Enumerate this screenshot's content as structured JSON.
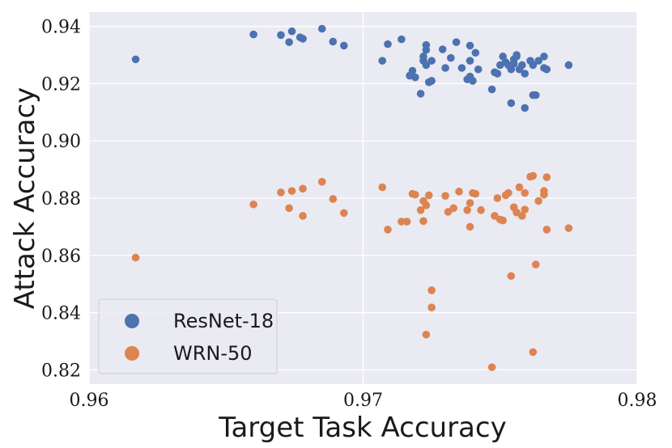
{
  "chart_data": {
    "type": "scatter",
    "title": "",
    "xlabel": "Target Task Accuracy",
    "ylabel": "Attack Accuracy",
    "xlim": [
      0.96,
      0.98
    ],
    "ylim": [
      0.815,
      0.945
    ],
    "xticks": [
      "0.96",
      "0.97",
      "0.98"
    ],
    "xtick_values": [
      0.96,
      0.97,
      0.98
    ],
    "yticks": [
      "0.82",
      "0.84",
      "0.86",
      "0.88",
      "0.90",
      "0.92",
      "0.94"
    ],
    "ytick_values": [
      0.82,
      0.84,
      0.86,
      0.88,
      0.9,
      0.92,
      0.94
    ],
    "grid": true,
    "legend_position": "bottom-left",
    "series": [
      {
        "name": "ResNet-18",
        "color": "#4c72b0",
        "points": [
          [
            0.9617,
            0.9285
          ],
          [
            0.966,
            0.9372
          ],
          [
            0.967,
            0.937
          ],
          [
            0.9673,
            0.9345
          ],
          [
            0.9674,
            0.9383
          ],
          [
            0.9677,
            0.9362
          ],
          [
            0.9678,
            0.9357
          ],
          [
            0.9685,
            0.9392
          ],
          [
            0.9689,
            0.9347
          ],
          [
            0.9693,
            0.9333
          ],
          [
            0.9707,
            0.928
          ],
          [
            0.9709,
            0.9338
          ],
          [
            0.9714,
            0.9355
          ],
          [
            0.9717,
            0.9228
          ],
          [
            0.9718,
            0.9245
          ],
          [
            0.9719,
            0.9222
          ],
          [
            0.9721,
            0.9165
          ],
          [
            0.9722,
            0.928
          ],
          [
            0.9722,
            0.9295
          ],
          [
            0.9723,
            0.9318
          ],
          [
            0.9723,
            0.9335
          ],
          [
            0.9723,
            0.9265
          ],
          [
            0.9724,
            0.9205
          ],
          [
            0.9725,
            0.921
          ],
          [
            0.9725,
            0.928
          ],
          [
            0.9729,
            0.932
          ],
          [
            0.973,
            0.9255
          ],
          [
            0.9732,
            0.929
          ],
          [
            0.9734,
            0.9345
          ],
          [
            0.9736,
            0.9255
          ],
          [
            0.9738,
            0.9215
          ],
          [
            0.9739,
            0.928
          ],
          [
            0.9739,
            0.9333
          ],
          [
            0.9739,
            0.9225
          ],
          [
            0.974,
            0.921
          ],
          [
            0.9741,
            0.9308
          ],
          [
            0.9742,
            0.925
          ],
          [
            0.9747,
            0.918
          ],
          [
            0.9748,
            0.924
          ],
          [
            0.9749,
            0.9235
          ],
          [
            0.975,
            0.9265
          ],
          [
            0.9751,
            0.9295
          ],
          [
            0.9752,
            0.9275
          ],
          [
            0.9753,
            0.9265
          ],
          [
            0.9754,
            0.9132
          ],
          [
            0.9754,
            0.925
          ],
          [
            0.9755,
            0.9285
          ],
          [
            0.9755,
            0.927
          ],
          [
            0.9756,
            0.9295
          ],
          [
            0.9756,
            0.93
          ],
          [
            0.9757,
            0.925
          ],
          [
            0.9758,
            0.9265
          ],
          [
            0.9759,
            0.9115
          ],
          [
            0.9759,
            0.9235
          ],
          [
            0.9761,
            0.928
          ],
          [
            0.9762,
            0.916
          ],
          [
            0.9762,
            0.9265
          ],
          [
            0.9763,
            0.916
          ],
          [
            0.9764,
            0.928
          ],
          [
            0.9766,
            0.9295
          ],
          [
            0.9766,
            0.9255
          ],
          [
            0.9767,
            0.925
          ],
          [
            0.9775,
            0.9265
          ]
        ]
      },
      {
        "name": "WRN-50",
        "color": "#dd8452",
        "points": [
          [
            0.9617,
            0.8592
          ],
          [
            0.966,
            0.8778
          ],
          [
            0.967,
            0.882
          ],
          [
            0.9673,
            0.8765
          ],
          [
            0.9674,
            0.8825
          ],
          [
            0.9678,
            0.8738
          ],
          [
            0.9678,
            0.8833
          ],
          [
            0.9685,
            0.8857
          ],
          [
            0.9689,
            0.8797
          ],
          [
            0.9693,
            0.8748
          ],
          [
            0.9707,
            0.8838
          ],
          [
            0.9709,
            0.869
          ],
          [
            0.9714,
            0.8718
          ],
          [
            0.9716,
            0.8718
          ],
          [
            0.9718,
            0.8815
          ],
          [
            0.9719,
            0.8812
          ],
          [
            0.9721,
            0.8758
          ],
          [
            0.9722,
            0.879
          ],
          [
            0.9722,
            0.872
          ],
          [
            0.9723,
            0.8323
          ],
          [
            0.9723,
            0.8775
          ],
          [
            0.9724,
            0.881
          ],
          [
            0.9725,
            0.8478
          ],
          [
            0.9725,
            0.8418
          ],
          [
            0.973,
            0.8808
          ],
          [
            0.9731,
            0.8752
          ],
          [
            0.9733,
            0.8765
          ],
          [
            0.9735,
            0.8823
          ],
          [
            0.9738,
            0.8758
          ],
          [
            0.9739,
            0.8783
          ],
          [
            0.9739,
            0.87
          ],
          [
            0.974,
            0.8818
          ],
          [
            0.9741,
            0.8815
          ],
          [
            0.9743,
            0.8758
          ],
          [
            0.9747,
            0.8209
          ],
          [
            0.9748,
            0.8738
          ],
          [
            0.9749,
            0.88
          ],
          [
            0.975,
            0.8725
          ],
          [
            0.9751,
            0.8722
          ],
          [
            0.9752,
            0.881
          ],
          [
            0.9753,
            0.8818
          ],
          [
            0.9754,
            0.8528
          ],
          [
            0.9755,
            0.8768
          ],
          [
            0.9756,
            0.875
          ],
          [
            0.9757,
            0.8838
          ],
          [
            0.9758,
            0.8738
          ],
          [
            0.9759,
            0.8818
          ],
          [
            0.9759,
            0.876
          ],
          [
            0.9761,
            0.8875
          ],
          [
            0.9762,
            0.8878
          ],
          [
            0.9762,
            0.8262
          ],
          [
            0.9763,
            0.8568
          ],
          [
            0.9764,
            0.879
          ],
          [
            0.9766,
            0.8812
          ],
          [
            0.9766,
            0.8825
          ],
          [
            0.9767,
            0.869
          ],
          [
            0.9767,
            0.8873
          ],
          [
            0.9775,
            0.8695
          ]
        ]
      }
    ]
  }
}
